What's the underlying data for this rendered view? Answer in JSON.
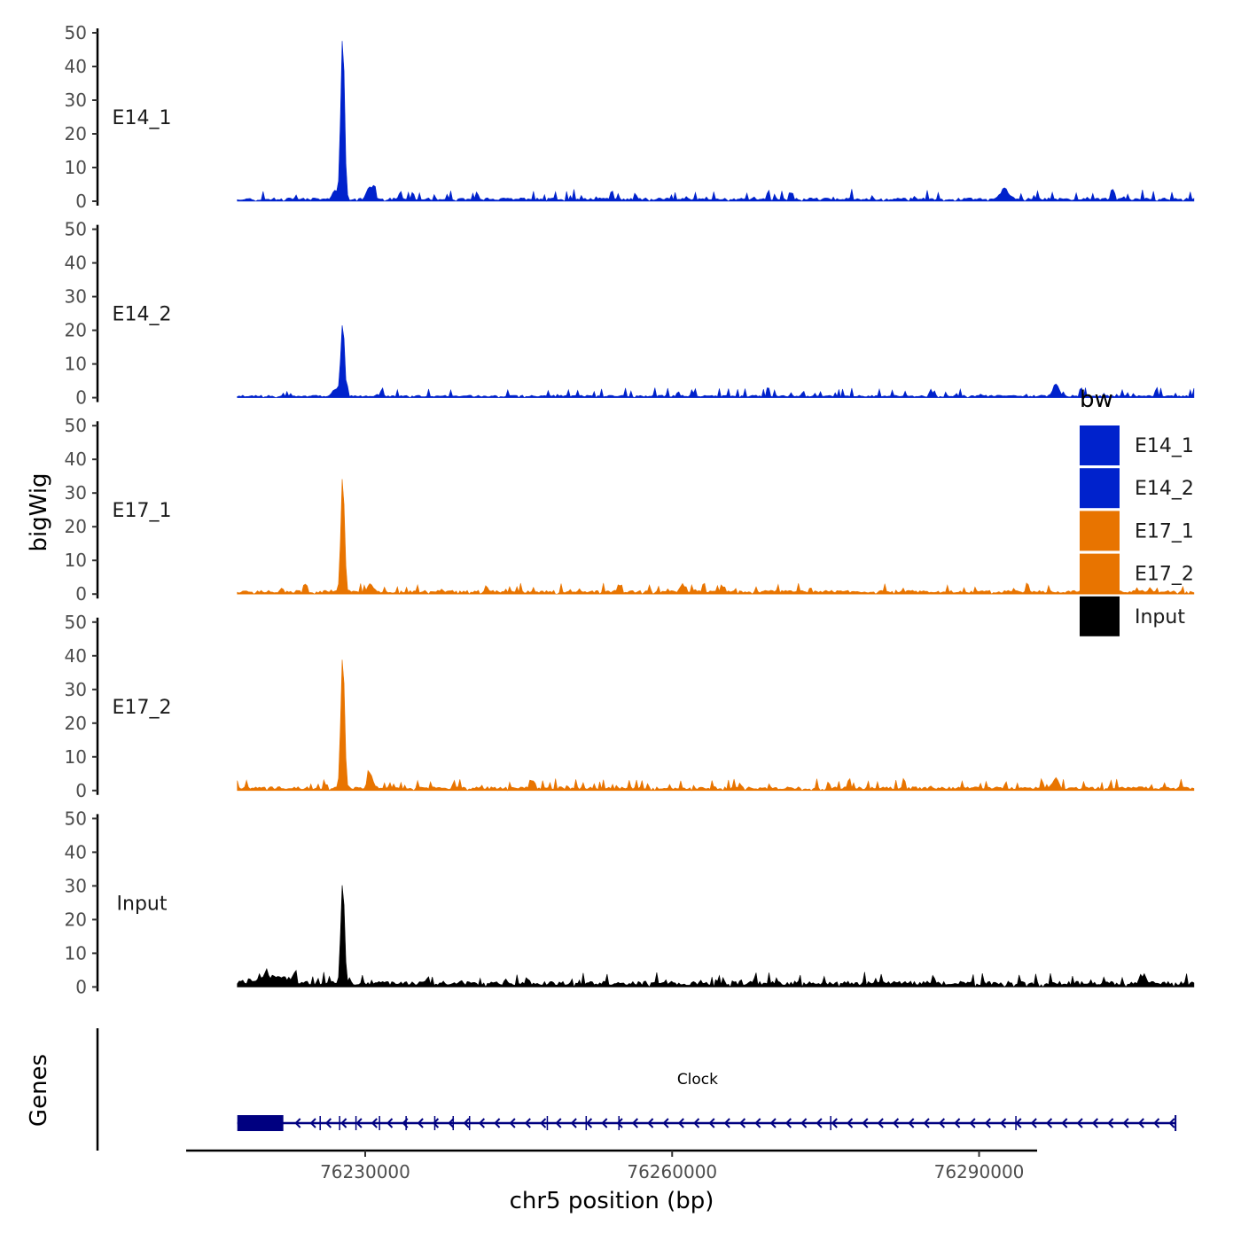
{
  "chart_data": {
    "type": "area",
    "ylabel": "bigWig",
    "xlabel": "chr5 position (bp)",
    "ylim": [
      0,
      50
    ],
    "yticks": [
      0,
      10,
      20,
      30,
      40,
      50
    ],
    "xlim": [
      76212500,
      76295500
    ],
    "xticks": [
      76230000,
      76260000,
      76290000
    ],
    "xtick_labels": [
      "76230000",
      "76260000",
      "76290000"
    ],
    "data_x_range": [
      76217500,
      76311000
    ],
    "tracks": [
      {
        "name": "E14_1",
        "color": "#0022CC",
        "baseline": 0.8,
        "noise": 1.2,
        "seed": 11,
        "peaks": [
          {
            "x": 76227800,
            "y": 49,
            "w": 180
          },
          {
            "x": 76230500,
            "y": 4,
            "w": 300
          },
          {
            "x": 76227100,
            "y": 3,
            "w": 250
          },
          {
            "x": 76292500,
            "y": 3,
            "w": 400
          }
        ]
      },
      {
        "name": "E14_2",
        "color": "#0022CC",
        "baseline": 0.6,
        "noise": 1.1,
        "seed": 23,
        "peaks": [
          {
            "x": 76227800,
            "y": 22,
            "w": 180
          },
          {
            "x": 76227100,
            "y": 2.5,
            "w": 250
          },
          {
            "x": 76297500,
            "y": 3.5,
            "w": 300
          }
        ]
      },
      {
        "name": "E17_1",
        "color": "#E87400",
        "baseline": 0.9,
        "noise": 1.1,
        "seed": 37,
        "peaks": [
          {
            "x": 76227800,
            "y": 33,
            "w": 180
          },
          {
            "x": 76230500,
            "y": 2.5,
            "w": 250
          },
          {
            "x": 76261000,
            "y": 2.5,
            "w": 200
          }
        ]
      },
      {
        "name": "E17_2",
        "color": "#E87400",
        "baseline": 0.9,
        "noise": 1.2,
        "seed": 41,
        "peaks": [
          {
            "x": 76227800,
            "y": 40,
            "w": 180
          },
          {
            "x": 76230500,
            "y": 4.5,
            "w": 250
          },
          {
            "x": 76297500,
            "y": 3,
            "w": 300
          }
        ]
      },
      {
        "name": "Input",
        "color": "#000000",
        "baseline": 1.4,
        "noise": 1.3,
        "seed": 59,
        "peaks": [
          {
            "x": 76227800,
            "y": 30,
            "w": 180
          },
          {
            "x": 76221000,
            "y": 2,
            "w": 1500
          },
          {
            "x": 76306000,
            "y": 3,
            "w": 300
          }
        ]
      }
    ],
    "genes_track": {
      "label": "Genes",
      "gene": {
        "name": "Clock",
        "start": 76217500,
        "end": 76309200,
        "thick_end": 76222000,
        "strand": "-",
        "color": "#000080"
      },
      "exon_marks": [
        76225600,
        76227500,
        76229100,
        76231400,
        76234000,
        76236800,
        76238600,
        76240200,
        76247800,
        76251600,
        76254800,
        76275500,
        76293600
      ]
    },
    "legend": {
      "title": "bw",
      "items": [
        {
          "label": "E14_1",
          "color": "#0022CC"
        },
        {
          "label": "E14_2",
          "color": "#0022CC"
        },
        {
          "label": "E17_1",
          "color": "#E87400"
        },
        {
          "label": "E17_2",
          "color": "#E87400"
        },
        {
          "label": "Input",
          "color": "#000000"
        }
      ]
    }
  }
}
